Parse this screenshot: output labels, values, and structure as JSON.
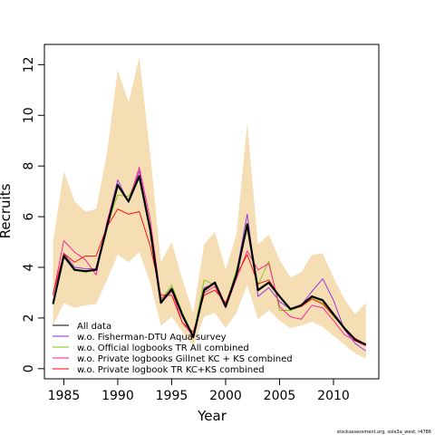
{
  "chart_data": {
    "type": "line",
    "xlabel": "Year",
    "ylabel": "Recruits",
    "xlim": [
      1983.2,
      2014.2
    ],
    "ylim": [
      -0.4,
      12.8
    ],
    "xticks": [
      1985,
      1990,
      1995,
      2000,
      2005,
      2010
    ],
    "yticks": [
      0,
      2,
      4,
      6,
      8,
      10,
      12
    ],
    "grid": false,
    "legend_position": "bottom-left",
    "x": [
      1984,
      1985,
      1986,
      1987,
      1988,
      1989,
      1990,
      1991,
      1992,
      1993,
      1994,
      1995,
      1996,
      1997,
      1998,
      1999,
      2000,
      2001,
      2002,
      2003,
      2004,
      2005,
      2006,
      2007,
      2008,
      2009,
      2010,
      2011,
      2012,
      2013
    ],
    "band": {
      "color": "#f5deb3",
      "lower": [
        1.7,
        2.6,
        2.4,
        2.5,
        2.55,
        3.5,
        4.5,
        4.2,
        4.6,
        3.4,
        1.7,
        2.05,
        1.45,
        0.9,
        2.05,
        2.2,
        1.6,
        2.2,
        3.3,
        1.95,
        2.3,
        1.9,
        1.6,
        1.7,
        1.85,
        1.65,
        1.3,
        0.95,
        0.6,
        0.4
      ],
      "upper": [
        5.0,
        7.8,
        6.6,
        6.2,
        6.3,
        8.5,
        11.8,
        10.5,
        12.3,
        8.5,
        4.2,
        5.0,
        3.5,
        2.2,
        4.9,
        5.4,
        3.9,
        5.3,
        9.7,
        4.9,
        5.3,
        4.3,
        3.6,
        3.8,
        4.5,
        4.55,
        3.6,
        2.75,
        2.15,
        2.6
      ]
    },
    "series": [
      {
        "name": "All data",
        "color": "#000000",
        "width": 2.2,
        "values": [
          2.55,
          4.45,
          3.9,
          3.85,
          3.9,
          5.6,
          7.25,
          6.6,
          7.6,
          5.5,
          2.6,
          3.15,
          2.1,
          1.25,
          3.1,
          3.4,
          2.45,
          3.7,
          5.7,
          3.1,
          3.4,
          2.85,
          2.35,
          2.5,
          2.85,
          2.7,
          2.15,
          1.6,
          1.15,
          0.95
        ]
      },
      {
        "name": "w.o. Fisherman-DTU Aqua survey",
        "color": "#8a2be2",
        "width": 0.9,
        "values": [
          2.55,
          4.55,
          4.0,
          3.95,
          3.95,
          5.75,
          7.45,
          6.55,
          7.8,
          5.6,
          2.6,
          3.05,
          2.15,
          1.2,
          3.2,
          3.35,
          2.4,
          3.8,
          6.1,
          2.85,
          3.2,
          2.65,
          2.35,
          2.5,
          3.05,
          3.55,
          2.7,
          1.55,
          1.0,
          0.7
        ]
      },
      {
        "name": "w.o. Official logbooks TR All combined",
        "color": "#7cc40e",
        "width": 0.9,
        "values": [
          2.6,
          4.4,
          3.95,
          3.8,
          3.9,
          5.65,
          6.85,
          6.8,
          7.6,
          5.4,
          2.7,
          3.3,
          2.2,
          1.3,
          3.5,
          3.3,
          2.5,
          3.9,
          5.5,
          3.3,
          4.25,
          2.3,
          2.3,
          2.45,
          2.8,
          2.6,
          2.05,
          1.6,
          1.15,
          0.95
        ]
      },
      {
        "name": "w.o. Private logbooks Gillnet KC + KS combined",
        "color": "#ff1493",
        "width": 0.9,
        "values": [
          2.9,
          5.05,
          4.6,
          4.3,
          3.7,
          5.8,
          7.3,
          6.6,
          7.95,
          5.9,
          2.75,
          3.1,
          1.8,
          1.3,
          3.0,
          3.25,
          2.4,
          3.55,
          4.65,
          3.9,
          4.15,
          2.45,
          2.05,
          1.95,
          2.5,
          2.4,
          1.9,
          1.35,
          1.1,
          0.9
        ]
      },
      {
        "name": "w.o. Private logbook TR KC+KS combined",
        "color": "#ff0000",
        "width": 0.9,
        "values": [
          2.95,
          4.55,
          4.2,
          4.45,
          4.45,
          5.6,
          6.3,
          6.1,
          6.2,
          4.85,
          2.9,
          2.9,
          1.8,
          1.45,
          2.9,
          3.1,
          2.6,
          3.7,
          4.5,
          3.35,
          3.5,
          2.85,
          2.35,
          2.45,
          2.75,
          2.55,
          2.1,
          1.6,
          1.2,
          0.95
        ]
      }
    ]
  },
  "footer": "stockassessment.org, sole3a_west, r4786"
}
